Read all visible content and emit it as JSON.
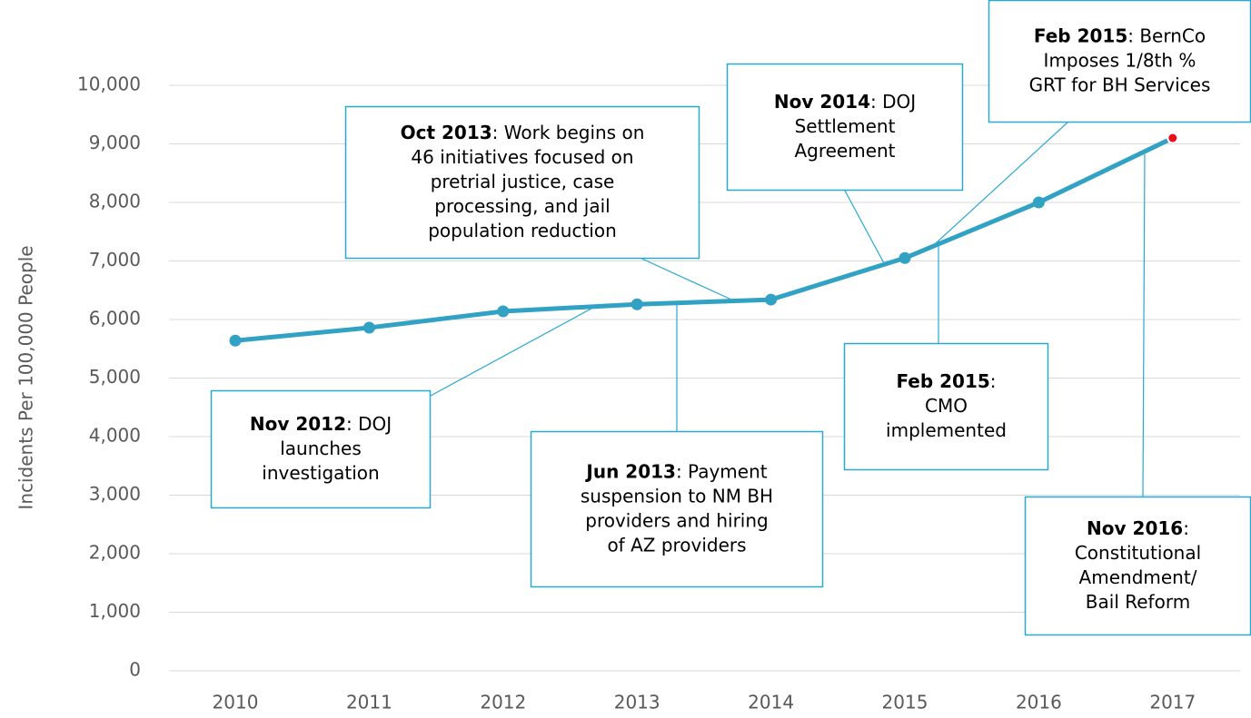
{
  "chart_data": {
    "type": "line",
    "y_label": "Incidents Per 100,000 People",
    "categories": [
      "2010",
      "2011",
      "2012",
      "2013",
      "2014",
      "2015",
      "2016",
      "2017"
    ],
    "values": [
      5640,
      5860,
      6140,
      6260,
      6340,
      7050,
      8000,
      9100
    ],
    "color": "#31a2c4",
    "highlight_color": "#e8101a",
    "ylim": [
      0,
      10000
    ],
    "yticks": [
      0,
      {
        "value": 1000,
        "label": "1,000"
      },
      {
        "value": 2000,
        "label": "2,000"
      },
      {
        "value": 3000,
        "label": "3,000"
      },
      {
        "value": 4000,
        "label": "4,000"
      },
      {
        "value": 5000,
        "label": "5,000"
      },
      {
        "value": 6000,
        "label": "6,000"
      },
      {
        "value": 7000,
        "label": "7,000"
      },
      {
        "value": 8000,
        "label": "8,000"
      },
      {
        "value": 9000,
        "label": "9,000"
      },
      {
        "value": 10000,
        "label": "10,000"
      }
    ],
    "grid": true,
    "annotations": [
      {
        "date": "Oct 2013",
        "text": [
          ": Work begins on",
          "46 initiatives focused on",
          "pretrial justice, case",
          "processing, and jail",
          "population reduction"
        ]
      },
      {
        "date": "Nov 2014",
        "text": [
          ": DOJ",
          "Settlement",
          "Agreement"
        ]
      },
      {
        "date": "Feb 2015",
        "text": [
          ": BernCo",
          "Imposes 1/8th %",
          "GRT for BH Services"
        ]
      },
      {
        "date": "Nov 2012",
        "text": [
          ": DOJ",
          "launches",
          "investigation"
        ]
      },
      {
        "date": "Jun 2013",
        "text": [
          ": Payment",
          "suspension to NM BH",
          "providers and hiring",
          "of AZ providers"
        ]
      },
      {
        "date": "Feb 2015",
        "text": [
          ":",
          "CMO",
          "implemented"
        ]
      },
      {
        "date": "Nov 2016",
        "text": [
          ":",
          "Constitutional",
          "Amendment/",
          "Bail Reform"
        ]
      }
    ]
  }
}
